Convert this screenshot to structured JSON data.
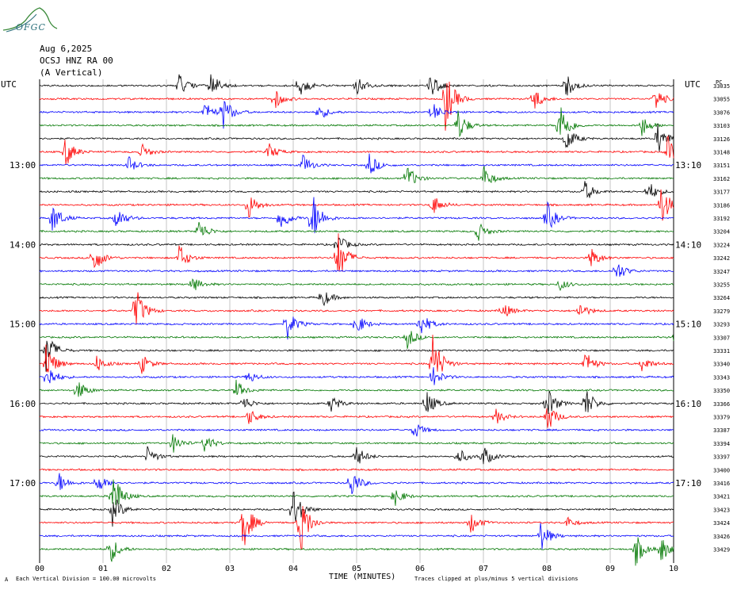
{
  "header": {
    "date": "Aug 6,2025",
    "station": "OCSJ HNZ RA 00",
    "component": "(A Vertical)",
    "logo_text": "OFGC"
  },
  "axes": {
    "left_zone": "UTC",
    "right_zone": "UTC",
    "top_right_label": "PC",
    "xlabel": "TIME (MINUTES)"
  },
  "footer": {
    "left_note": "Each Vertical Division = 100.00 microvolts",
    "right_note": "Traces clipped at plus/minus 5 vertical divisions",
    "corner_mark": "A"
  },
  "colors": {
    "trace_cycle": [
      "#000000",
      "#ff0000",
      "#0000ff",
      "#007700"
    ],
    "grid": "#000000",
    "background": "#ffffff"
  },
  "chart_data": {
    "type": "line",
    "title": "",
    "xlabel": "TIME (MINUTES)",
    "ylabel": "",
    "xlim": [
      0,
      10
    ],
    "x_ticks": [
      "00",
      "01",
      "02",
      "03",
      "04",
      "05",
      "06",
      "07",
      "08",
      "09",
      "10"
    ],
    "grid": true,
    "left_time_labels": [
      {
        "label": "13:00",
        "trace": 6
      },
      {
        "label": "14:00",
        "trace": 12
      },
      {
        "label": "15:00",
        "trace": 18
      },
      {
        "label": "16:00",
        "trace": 24
      },
      {
        "label": "17:00",
        "trace": 30
      }
    ],
    "right_time_labels": [
      {
        "label": "13:10",
        "trace": 6
      },
      {
        "label": "14:10",
        "trace": 12
      },
      {
        "label": "15:10",
        "trace": 18
      },
      {
        "label": "16:10",
        "trace": 24
      },
      {
        "label": "17:10",
        "trace": 30
      }
    ],
    "trace_ids": [
      "33035",
      "33055",
      "33076",
      "33103",
      "33126",
      "33148",
      "33151",
      "33162",
      "33177",
      "33186",
      "33192",
      "33204",
      "33224",
      "33242",
      "33247",
      "33255",
      "33264",
      "33279",
      "33293",
      "33307",
      "33331",
      "33340",
      "33343",
      "33350",
      "33366",
      "33379",
      "33387",
      "33394",
      "33397",
      "33400",
      "33416",
      "33421",
      "33423",
      "33424",
      "33426",
      "33429"
    ],
    "events": [
      {
        "trace": 0,
        "minute": 2.2,
        "amp": 1.0
      },
      {
        "trace": 0,
        "minute": 2.7,
        "amp": 1.2
      },
      {
        "trace": 0,
        "minute": 4.1,
        "amp": 1.1
      },
      {
        "trace": 0,
        "minute": 5.0,
        "amp": 1.0
      },
      {
        "trace": 0,
        "minute": 6.15,
        "amp": 1.3
      },
      {
        "trace": 0,
        "minute": 8.3,
        "amp": 1.2
      },
      {
        "trace": 1,
        "minute": 3.7,
        "amp": 1.0
      },
      {
        "trace": 1,
        "minute": 6.4,
        "amp": 3.0
      },
      {
        "trace": 1,
        "minute": 7.8,
        "amp": 1.0
      },
      {
        "trace": 1,
        "minute": 9.7,
        "amp": 1.2
      },
      {
        "trace": 2,
        "minute": 2.6,
        "amp": 1.0
      },
      {
        "trace": 2,
        "minute": 2.9,
        "amp": 1.5
      },
      {
        "trace": 2,
        "minute": 4.4,
        "amp": 0.8
      },
      {
        "trace": 2,
        "minute": 6.2,
        "amp": 0.9
      },
      {
        "trace": 3,
        "minute": 6.6,
        "amp": 1.5
      },
      {
        "trace": 3,
        "minute": 8.2,
        "amp": 2.5
      },
      {
        "trace": 3,
        "minute": 9.5,
        "amp": 1.0
      },
      {
        "trace": 4,
        "minute": 8.3,
        "amp": 1.3
      },
      {
        "trace": 4,
        "minute": 9.75,
        "amp": 1.5
      },
      {
        "trace": 5,
        "minute": 0.4,
        "amp": 1.5
      },
      {
        "trace": 5,
        "minute": 1.6,
        "amp": 0.8
      },
      {
        "trace": 5,
        "minute": 3.6,
        "amp": 0.9
      },
      {
        "trace": 5,
        "minute": 9.9,
        "amp": 1.5
      },
      {
        "trace": 6,
        "minute": 1.4,
        "amp": 0.8
      },
      {
        "trace": 6,
        "minute": 4.15,
        "amp": 1.0
      },
      {
        "trace": 6,
        "minute": 5.2,
        "amp": 1.1
      },
      {
        "trace": 7,
        "minute": 5.8,
        "amp": 1.2
      },
      {
        "trace": 7,
        "minute": 7.0,
        "amp": 1.2
      },
      {
        "trace": 8,
        "minute": 8.6,
        "amp": 1.0
      },
      {
        "trace": 8,
        "minute": 9.6,
        "amp": 1.0
      },
      {
        "trace": 9,
        "minute": 3.3,
        "amp": 1.2
      },
      {
        "trace": 9,
        "minute": 6.2,
        "amp": 1.0
      },
      {
        "trace": 9,
        "minute": 9.8,
        "amp": 2.0
      },
      {
        "trace": 10,
        "minute": 0.2,
        "amp": 1.5
      },
      {
        "trace": 10,
        "minute": 1.2,
        "amp": 1.2
      },
      {
        "trace": 10,
        "minute": 3.8,
        "amp": 1.3
      },
      {
        "trace": 10,
        "minute": 4.3,
        "amp": 2.5
      },
      {
        "trace": 10,
        "minute": 8.0,
        "amp": 1.5
      },
      {
        "trace": 11,
        "minute": 2.5,
        "amp": 1.2
      },
      {
        "trace": 11,
        "minute": 6.9,
        "amp": 1.0
      },
      {
        "trace": 12,
        "minute": 4.7,
        "amp": 1.0
      },
      {
        "trace": 13,
        "minute": 0.85,
        "amp": 1.5
      },
      {
        "trace": 13,
        "minute": 2.2,
        "amp": 1.3
      },
      {
        "trace": 13,
        "minute": 4.7,
        "amp": 2.5
      },
      {
        "trace": 13,
        "minute": 8.7,
        "amp": 1.0
      },
      {
        "trace": 14,
        "minute": 9.1,
        "amp": 1.0
      },
      {
        "trace": 15,
        "minute": 2.4,
        "amp": 0.8
      },
      {
        "trace": 15,
        "minute": 8.2,
        "amp": 0.6
      },
      {
        "trace": 16,
        "minute": 4.45,
        "amp": 1.0
      },
      {
        "trace": 17,
        "minute": 1.5,
        "amp": 2.5
      },
      {
        "trace": 17,
        "minute": 7.3,
        "amp": 0.8
      },
      {
        "trace": 17,
        "minute": 8.5,
        "amp": 0.9
      },
      {
        "trace": 18,
        "minute": 3.9,
        "amp": 1.5
      },
      {
        "trace": 18,
        "minute": 5.0,
        "amp": 1.0
      },
      {
        "trace": 18,
        "minute": 6.0,
        "amp": 1.3
      },
      {
        "trace": 19,
        "minute": 5.8,
        "amp": 1.0
      },
      {
        "trace": 19,
        "minute": 10.0,
        "amp": 0.8
      },
      {
        "trace": 20,
        "minute": 0.1,
        "amp": 2.0
      },
      {
        "trace": 21,
        "minute": 0.1,
        "amp": 2.0
      },
      {
        "trace": 21,
        "minute": 0.9,
        "amp": 0.8
      },
      {
        "trace": 21,
        "minute": 1.6,
        "amp": 1.0
      },
      {
        "trace": 21,
        "minute": 6.2,
        "amp": 3.0
      },
      {
        "trace": 21,
        "minute": 8.6,
        "amp": 1.3
      },
      {
        "trace": 21,
        "minute": 9.5,
        "amp": 0.8
      },
      {
        "trace": 22,
        "minute": 0.1,
        "amp": 1.5
      },
      {
        "trace": 22,
        "minute": 3.3,
        "amp": 0.6
      },
      {
        "trace": 22,
        "minute": 6.2,
        "amp": 1.0
      },
      {
        "trace": 23,
        "minute": 0.6,
        "amp": 1.0
      },
      {
        "trace": 23,
        "minute": 3.1,
        "amp": 0.9
      },
      {
        "trace": 24,
        "minute": 3.2,
        "amp": 0.8
      },
      {
        "trace": 24,
        "minute": 4.6,
        "amp": 0.8
      },
      {
        "trace": 24,
        "minute": 6.1,
        "amp": 1.3
      },
      {
        "trace": 24,
        "minute": 8.0,
        "amp": 1.6
      },
      {
        "trace": 24,
        "minute": 8.6,
        "amp": 1.6
      },
      {
        "trace": 25,
        "minute": 3.3,
        "amp": 0.8
      },
      {
        "trace": 25,
        "minute": 7.2,
        "amp": 0.7
      },
      {
        "trace": 25,
        "minute": 8.0,
        "amp": 1.5
      },
      {
        "trace": 26,
        "minute": 5.9,
        "amp": 0.9
      },
      {
        "trace": 27,
        "minute": 2.1,
        "amp": 0.9
      },
      {
        "trace": 27,
        "minute": 2.6,
        "amp": 0.9
      },
      {
        "trace": 28,
        "minute": 1.7,
        "amp": 0.9
      },
      {
        "trace": 28,
        "minute": 5.0,
        "amp": 1.0
      },
      {
        "trace": 28,
        "minute": 6.6,
        "amp": 0.8
      },
      {
        "trace": 28,
        "minute": 7.0,
        "amp": 1.0
      },
      {
        "trace": 30,
        "minute": 0.3,
        "amp": 1.0
      },
      {
        "trace": 30,
        "minute": 0.9,
        "amp": 1.0
      },
      {
        "trace": 30,
        "minute": 4.9,
        "amp": 1.5
      },
      {
        "trace": 31,
        "minute": 1.15,
        "amp": 2.5
      },
      {
        "trace": 31,
        "minute": 5.6,
        "amp": 0.9
      },
      {
        "trace": 32,
        "minute": 1.15,
        "amp": 1.5
      },
      {
        "trace": 32,
        "minute": 4.0,
        "amp": 2.0
      },
      {
        "trace": 33,
        "minute": 3.2,
        "amp": 2.8
      },
      {
        "trace": 33,
        "minute": 4.1,
        "amp": 3.2
      },
      {
        "trace": 33,
        "minute": 6.8,
        "amp": 1.0
      },
      {
        "trace": 33,
        "minute": 8.3,
        "amp": 0.6
      },
      {
        "trace": 34,
        "minute": 7.9,
        "amp": 1.5
      },
      {
        "trace": 35,
        "minute": 1.1,
        "amp": 1.5
      },
      {
        "trace": 35,
        "minute": 9.4,
        "amp": 1.5
      },
      {
        "trace": 35,
        "minute": 9.8,
        "amp": 1.2
      }
    ]
  }
}
